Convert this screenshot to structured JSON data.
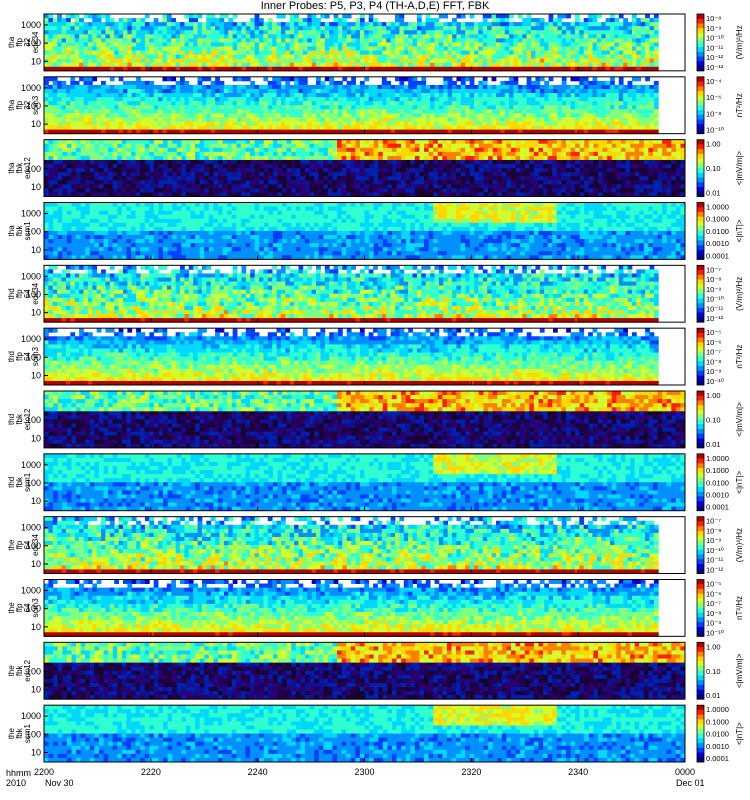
{
  "title": "Inner Probes: P5, P3, P4 (TH-A,D,E) FFT, FBK",
  "x_axis": {
    "label_line1": "hhmm",
    "label_line2": "2010",
    "tick_labels": [
      "2200",
      "2220",
      "2240",
      "2300",
      "2320",
      "2340",
      "0000"
    ],
    "start_date": "Nov 30",
    "end_date": "Dec 01"
  },
  "chart_data": [
    {
      "type": "heatmap",
      "probe": "tha",
      "label": [
        "tha",
        "ffp",
        "32",
        "edc34"
      ],
      "yticks": [
        "10",
        "100",
        "1000"
      ],
      "colorbar_ticks": [
        "10⁻⁸",
        "10⁻⁹",
        "10⁻¹⁰",
        "10⁻¹¹",
        "10⁻¹²",
        "10⁻¹³"
      ],
      "colorbar_label": "(V/m)²/Hz",
      "style": "efield",
      "data_end": "2355"
    },
    {
      "type": "heatmap",
      "probe": "tha",
      "label": [
        "tha",
        "ffp",
        "32",
        "scm3"
      ],
      "yticks": [
        "10",
        "100",
        "1000"
      ],
      "colorbar_ticks": [
        "10⁻⁴",
        "10⁻⁶",
        "10⁻⁸",
        "10⁻¹⁰"
      ],
      "colorbar_label": "nT²/Hz",
      "style": "bfield",
      "data_end": "2355"
    },
    {
      "type": "heatmap",
      "probe": "tha",
      "label": [
        "tha",
        "fbk",
        "edc12"
      ],
      "yticks": [
        "10",
        "100"
      ],
      "colorbar_ticks": [
        "1.00",
        "0.10",
        "0.01"
      ],
      "colorbar_label": "<|mV/m|>",
      "style": "fbke",
      "data_end": "0000"
    },
    {
      "type": "heatmap",
      "probe": "tha",
      "label": [
        "tha",
        "fbk",
        "scm1"
      ],
      "yticks": [
        "10",
        "100",
        "1000"
      ],
      "colorbar_ticks": [
        "1.0000",
        "0.1000",
        "0.0100",
        "0.0010",
        "0.0001"
      ],
      "colorbar_label": "<|nT|>",
      "style": "fbkb",
      "data_end": "0000"
    },
    {
      "type": "heatmap",
      "probe": "thd",
      "label": [
        "thd",
        "ffp",
        "64",
        "edc34"
      ],
      "yticks": [
        "10",
        "100",
        "1000"
      ],
      "colorbar_ticks": [
        "10⁻⁷",
        "10⁻⁸",
        "10⁻⁹",
        "10⁻¹⁰",
        "10⁻¹¹",
        "10⁻¹²"
      ],
      "colorbar_label": "(V/m)²/Hz",
      "style": "efield",
      "data_end": "2355"
    },
    {
      "type": "heatmap",
      "probe": "thd",
      "label": [
        "thd",
        "ffp",
        "64",
        "scm3"
      ],
      "yticks": [
        "10",
        "100",
        "1000"
      ],
      "colorbar_ticks": [
        "10⁻⁵",
        "10⁻⁶",
        "10⁻⁷",
        "10⁻⁸",
        "10⁻⁹",
        "10⁻¹⁰"
      ],
      "colorbar_label": "nT²/Hz",
      "style": "bfield",
      "data_end": "2355"
    },
    {
      "type": "heatmap",
      "probe": "thd",
      "label": [
        "thd",
        "fbk",
        "edc12"
      ],
      "yticks": [
        "10",
        "100"
      ],
      "colorbar_ticks": [
        "1.00",
        "0.10",
        "0.01"
      ],
      "colorbar_label": "<|mV/m|>",
      "style": "fbke",
      "data_end": "0000"
    },
    {
      "type": "heatmap",
      "probe": "thd",
      "label": [
        "thd",
        "fbk",
        "scm1"
      ],
      "yticks": [
        "10",
        "100",
        "1000"
      ],
      "colorbar_ticks": [
        "1.0000",
        "0.1000",
        "0.0100",
        "0.0010",
        "0.0001"
      ],
      "colorbar_label": "<|nT|>",
      "style": "fbkb",
      "data_end": "0000"
    },
    {
      "type": "heatmap",
      "probe": "the",
      "label": [
        "the",
        "ffp",
        "64",
        "edc34"
      ],
      "yticks": [
        "10",
        "100",
        "1000"
      ],
      "colorbar_ticks": [
        "10⁻⁷",
        "10⁻⁸",
        "10⁻⁹",
        "10⁻¹⁰",
        "10⁻¹¹",
        "10⁻¹²"
      ],
      "colorbar_label": "(V/m)²/Hz",
      "style": "efield",
      "data_end": "2355"
    },
    {
      "type": "heatmap",
      "probe": "the",
      "label": [
        "the",
        "ffp",
        "64",
        "scm3"
      ],
      "yticks": [
        "10",
        "100",
        "1000"
      ],
      "colorbar_ticks": [
        "10⁻⁵",
        "10⁻⁶",
        "10⁻⁷",
        "10⁻⁸",
        "10⁻⁹",
        "10⁻¹⁰"
      ],
      "colorbar_label": "nT²/Hz",
      "style": "bfield",
      "data_end": "2355"
    },
    {
      "type": "heatmap",
      "probe": "the",
      "label": [
        "the",
        "fbk",
        "edc12"
      ],
      "yticks": [
        "10",
        "100"
      ],
      "colorbar_ticks": [
        "1.00",
        "0.10",
        "0.01"
      ],
      "colorbar_label": "<|mV/m|>",
      "style": "fbke",
      "data_end": "0000"
    },
    {
      "type": "heatmap",
      "probe": "the",
      "label": [
        "the",
        "fbk",
        "scm1"
      ],
      "yticks": [
        "10",
        "100",
        "1000"
      ],
      "colorbar_ticks": [
        "1.0000",
        "0.1000",
        "0.0100",
        "0.0010",
        "0.0001"
      ],
      "colorbar_label": "<|nT|>",
      "style": "fbkb",
      "data_end": "0000"
    }
  ]
}
